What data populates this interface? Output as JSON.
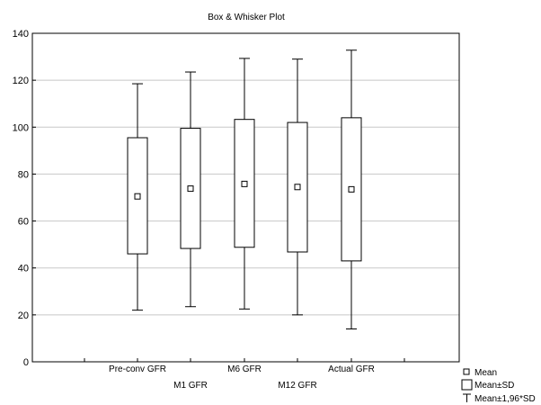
{
  "chart_data": {
    "type": "box",
    "title": "Box & Whisker Plot",
    "xlabel": "",
    "ylabel": "",
    "ylim": [
      0,
      140
    ],
    "yticks": [
      0,
      20,
      40,
      60,
      80,
      100,
      120,
      140
    ],
    "grid": true,
    "categories": [
      "Pre-conv GFR",
      "M1 GFR",
      "M6 GFR",
      "M12 GFR",
      "Actual GFR"
    ],
    "series": [
      {
        "name": "Pre-conv GFR",
        "mean": 70.5,
        "sd_low": 46.0,
        "sd_high": 95.5,
        "whisker_low": 22.0,
        "whisker_high": 118.5
      },
      {
        "name": "M1 GFR",
        "mean": 73.8,
        "sd_low": 48.3,
        "sd_high": 99.5,
        "whisker_low": 23.5,
        "whisker_high": 123.5
      },
      {
        "name": "M6 GFR",
        "mean": 75.8,
        "sd_low": 48.8,
        "sd_high": 103.3,
        "whisker_low": 22.5,
        "whisker_high": 129.3
      },
      {
        "name": "M12 GFR",
        "mean": 74.5,
        "sd_low": 46.8,
        "sd_high": 102.0,
        "whisker_low": 20.0,
        "whisker_high": 129.0
      },
      {
        "name": "Actual GFR",
        "mean": 73.5,
        "sd_low": 43.0,
        "sd_high": 104.0,
        "whisker_low": 14.0,
        "whisker_high": 132.8
      }
    ],
    "legend": {
      "position": "bottom-right",
      "entries": [
        "Mean",
        "Mean±SD",
        "Mean±1,96*SD"
      ]
    }
  }
}
